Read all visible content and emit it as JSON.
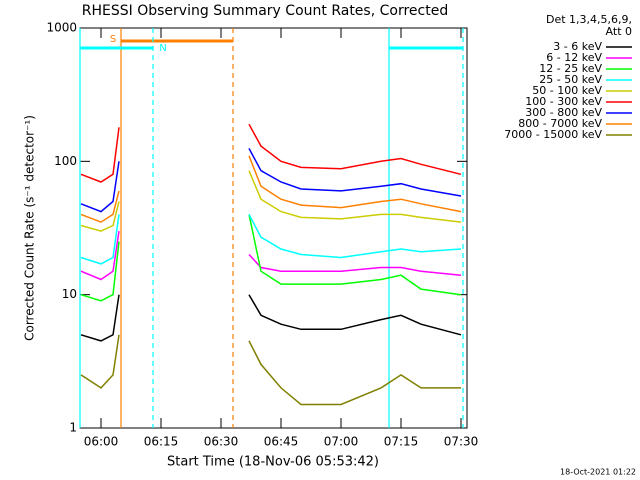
{
  "chart_data": {
    "type": "line",
    "title": "RHESSI Observing Summary Count Rates, Corrected",
    "x_label": "Start Time (18-Nov-06 05:53:42)",
    "y_label": "Corrected Count Rate (s⁻¹ detector⁻¹)",
    "legend_header": [
      "Det 1,3,4,5,6,9,",
      "Att 0"
    ],
    "footer": "18-Oct-2021 01:22",
    "log_y": true,
    "x": [
      "05:55",
      "06:00",
      "06:03",
      "06:04:30",
      "06:20",
      "06:37",
      "06:40",
      "06:45",
      "06:50",
      "07:00",
      "07:10",
      "07:15",
      "07:20",
      "07:30"
    ],
    "xlim": [
      "05:54:45",
      "07:31:30"
    ],
    "xticks": [
      "06:00",
      "06:15",
      "06:30",
      "06:45",
      "07:00",
      "07:15",
      "07:30"
    ],
    "ylim": [
      1,
      1000
    ],
    "yticks": [
      1,
      10,
      100,
      1000
    ],
    "series": [
      {
        "name": "3 - 6 keV",
        "color": "#000000",
        "values": [
          5,
          4.5,
          5,
          10,
          null,
          10,
          7,
          6,
          5.5,
          5.5,
          6.5,
          7,
          6,
          5
        ]
      },
      {
        "name": "6 - 12 keV",
        "color": "#ff00ff",
        "values": [
          15,
          13,
          15,
          30,
          null,
          20,
          16,
          15,
          15,
          15,
          16,
          16,
          15,
          14
        ]
      },
      {
        "name": "12 - 25 keV",
        "color": "#00ff00",
        "values": [
          10,
          9,
          10,
          25,
          null,
          40,
          15,
          12,
          12,
          12,
          13,
          14,
          11,
          10
        ]
      },
      {
        "name": "25 - 50 keV",
        "color": "#00ffff",
        "values": [
          19,
          17,
          19,
          40,
          null,
          40,
          27,
          22,
          20,
          19,
          21,
          22,
          21,
          22
        ]
      },
      {
        "name": "50 - 100 keV",
        "color": "#cccc00",
        "values": [
          33,
          30,
          33,
          50,
          null,
          85,
          52,
          42,
          38,
          37,
          40,
          40,
          38,
          35
        ]
      },
      {
        "name": "100 - 300 keV",
        "color": "#ff0000",
        "values": [
          80,
          70,
          80,
          180,
          null,
          190,
          130,
          100,
          90,
          88,
          100,
          105,
          95,
          80
        ]
      },
      {
        "name": "300 - 800 keV",
        "color": "#0000ff",
        "values": [
          48,
          42,
          50,
          100,
          null,
          125,
          85,
          70,
          62,
          60,
          65,
          68,
          62,
          55
        ]
      },
      {
        "name": "800 - 7000 keV",
        "color": "#ff8000",
        "values": [
          40,
          35,
          40,
          60,
          null,
          110,
          65,
          52,
          47,
          45,
          50,
          52,
          48,
          42
        ]
      },
      {
        "name": "7000 - 15000 keV",
        "color": "#808000",
        "values": [
          2.5,
          2,
          2.5,
          5,
          null,
          4.5,
          3,
          2,
          1.5,
          1.5,
          2,
          2.5,
          2,
          2
        ]
      }
    ],
    "flags": [
      {
        "label": "S",
        "color": "#ff8000",
        "intervals": [
          [
            "06:05",
            "06:33"
          ]
        ]
      },
      {
        "label": "N",
        "color": "#00ffff",
        "intervals": [
          [
            "05:54:45",
            "06:13"
          ],
          [
            "07:12",
            "07:30:30"
          ]
        ]
      }
    ]
  }
}
